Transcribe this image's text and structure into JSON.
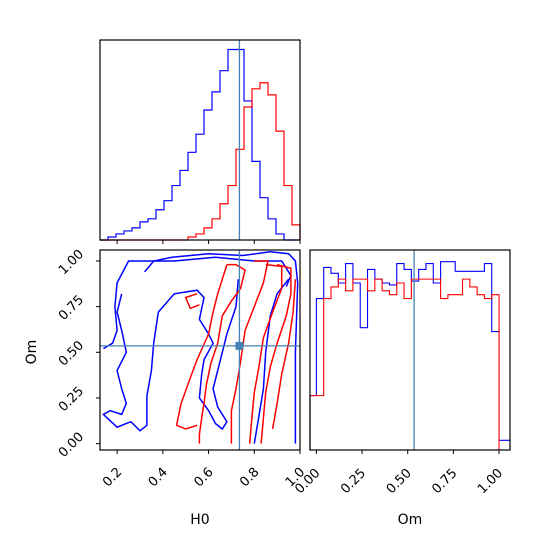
{
  "chart_data": {
    "type": "corner",
    "xlabel_h0": "H0",
    "xlabel_om": "Om",
    "ylabel_om": "Om",
    "h0_ticks": [
      {
        "value": 0.2,
        "label": "0.2"
      },
      {
        "value": 0.4,
        "label": "0.4"
      },
      {
        "value": 0.6,
        "label": "0.6"
      },
      {
        "value": 0.8,
        "label": "0.8"
      },
      {
        "value": 1.0,
        "label": "1.0"
      }
    ],
    "om_ticks": [
      {
        "value": 0.0,
        "label": "0.00"
      },
      {
        "value": 0.25,
        "label": "0.25"
      },
      {
        "value": 0.5,
        "label": "0.50"
      },
      {
        "value": 0.75,
        "label": "0.75"
      },
      {
        "value": 1.0,
        "label": "1.00"
      }
    ],
    "h0_range": [
      0.125,
      1.0
    ],
    "om_range": [
      -0.035,
      1.06
    ],
    "truth": {
      "H0": 0.735,
      "Om": 0.535
    },
    "colors": {
      "series_a": "#0000ff",
      "series_b": "#ff0000",
      "truth": "#4682b4"
    },
    "h0_hist": {
      "bins": [
        0.125,
        0.16,
        0.195,
        0.23,
        0.265,
        0.3,
        0.335,
        0.37,
        0.405,
        0.44,
        0.475,
        0.51,
        0.545,
        0.58,
        0.615,
        0.65,
        0.685,
        0.72,
        0.755,
        0.79,
        0.825,
        0.86,
        0.895,
        0.93,
        0.965,
        1.0
      ],
      "series_a": [
        0,
        1,
        2,
        3,
        4,
        6,
        7,
        10,
        13,
        18,
        23,
        29,
        35,
        43,
        49,
        56,
        63,
        63,
        46,
        26,
        14,
        7,
        2,
        0,
        0
      ],
      "series_b": [
        0,
        0,
        0,
        0,
        0,
        0,
        0,
        0,
        0,
        0,
        0,
        1,
        2,
        4,
        7,
        12,
        18,
        30,
        44,
        50,
        52,
        48,
        36,
        18,
        5
      ]
    },
    "om_hist": {
      "bins": [
        -0.035,
        0.0,
        0.04,
        0.08,
        0.12,
        0.16,
        0.2,
        0.24,
        0.28,
        0.32,
        0.36,
        0.4,
        0.44,
        0.48,
        0.52,
        0.56,
        0.6,
        0.64,
        0.68,
        0.72,
        0.76,
        0.8,
        0.84,
        0.88,
        0.92,
        0.96,
        1.0,
        1.06
      ],
      "series_a": [
        0.28,
        0.78,
        0.94,
        0.91,
        0.86,
        0.96,
        0.86,
        0.63,
        0.93,
        0.88,
        0.86,
        0.85,
        0.96,
        0.93,
        0.87,
        0.93,
        0.96,
        0.86,
        0.97,
        0.97,
        0.92,
        0.92,
        0.92,
        0.92,
        0.96,
        0.61,
        0.05
      ],
      "series_b": [
        0.28,
        0.28,
        0.78,
        0.84,
        0.88,
        0.82,
        0.88,
        0.88,
        0.82,
        0.88,
        0.82,
        0.8,
        0.86,
        0.78,
        0.88,
        0.88,
        0.88,
        0.88,
        0.78,
        0.8,
        0.8,
        0.88,
        0.84,
        0.8,
        0.78,
        0.8,
        0.0
      ]
    },
    "contours": {
      "series_a": [
        [
          [
            0.32,
            0.94
          ],
          [
            0.36,
            1.0
          ],
          [
            0.44,
            1.02
          ],
          [
            0.6,
            1.04
          ],
          [
            0.75,
            1.03
          ],
          [
            0.87,
            1.05
          ],
          [
            0.95,
            1.04
          ],
          [
            0.98,
            1.0
          ],
          [
            0.99,
            0.88
          ],
          [
            0.98,
            0.5
          ],
          [
            0.98,
            0.2
          ],
          [
            0.98,
            0.0
          ]
        ],
        [
          [
            0.14,
            0.52
          ],
          [
            0.18,
            0.55
          ],
          [
            0.2,
            0.62
          ],
          [
            0.19,
            0.75
          ],
          [
            0.2,
            0.88
          ],
          [
            0.25,
            1.0
          ],
          [
            0.45,
            1.0
          ],
          [
            0.63,
            1.02
          ],
          [
            0.8,
            1.0
          ],
          [
            0.92,
            1.0
          ],
          [
            0.96,
            0.92
          ],
          [
            0.94,
            0.86
          ]
        ],
        [
          [
            0.22,
            0.82
          ],
          [
            0.2,
            0.72
          ],
          [
            0.22,
            0.62
          ],
          [
            0.24,
            0.5
          ],
          [
            0.2,
            0.4
          ],
          [
            0.22,
            0.3
          ],
          [
            0.24,
            0.22
          ],
          [
            0.22,
            0.16
          ],
          [
            0.17,
            0.18
          ],
          [
            0.14,
            0.16
          ],
          [
            0.2,
            0.09
          ],
          [
            0.26,
            0.12
          ],
          [
            0.3,
            0.07
          ],
          [
            0.33,
            0.1
          ],
          [
            0.33,
            0.26
          ],
          [
            0.35,
            0.4
          ],
          [
            0.36,
            0.55
          ],
          [
            0.38,
            0.72
          ],
          [
            0.45,
            0.82
          ],
          [
            0.55,
            0.84
          ],
          [
            0.58,
            0.8
          ],
          [
            0.56,
            0.68
          ],
          [
            0.6,
            0.6
          ],
          [
            0.62,
            0.55
          ],
          [
            0.58,
            0.46
          ],
          [
            0.57,
            0.38
          ],
          [
            0.56,
            0.25
          ],
          [
            0.6,
            0.18
          ],
          [
            0.63,
            0.11
          ],
          [
            0.66,
            0.08
          ],
          [
            0.68,
            0.12
          ],
          [
            0.64,
            0.2
          ],
          [
            0.62,
            0.3
          ],
          [
            0.65,
            0.45
          ],
          [
            0.68,
            0.6
          ],
          [
            0.72,
            0.75
          ],
          [
            0.73,
            0.9
          ]
        ],
        [
          [
            0.8,
            0.0
          ],
          [
            0.82,
            0.15
          ],
          [
            0.84,
            0.3
          ],
          [
            0.85,
            0.5
          ],
          [
            0.87,
            0.7
          ],
          [
            0.9,
            0.82
          ],
          [
            0.95,
            0.9
          ]
        ]
      ],
      "series_b": [
        [
          [
            0.68,
            0.98
          ],
          [
            0.72,
            0.98
          ],
          [
            0.76,
            0.95
          ],
          [
            0.74,
            0.85
          ],
          [
            0.7,
            0.78
          ],
          [
            0.66,
            0.7
          ],
          [
            0.64,
            0.55
          ],
          [
            0.61,
            0.44
          ],
          [
            0.59,
            0.32
          ],
          [
            0.58,
            0.22
          ],
          [
            0.57,
            0.14
          ],
          [
            0.56,
            0.05
          ],
          [
            0.56,
            0.0
          ]
        ],
        [
          [
            0.8,
            1.0
          ],
          [
            0.86,
            1.0
          ],
          [
            0.84,
            0.88
          ],
          [
            0.8,
            0.75
          ],
          [
            0.76,
            0.62
          ],
          [
            0.74,
            0.45
          ],
          [
            0.72,
            0.3
          ],
          [
            0.7,
            0.18
          ],
          [
            0.7,
            0.0
          ]
        ],
        [
          [
            0.85,
            0.98
          ],
          [
            0.92,
            0.97
          ],
          [
            0.92,
            0.85
          ],
          [
            0.88,
            0.72
          ],
          [
            0.84,
            0.58
          ],
          [
            0.82,
            0.42
          ],
          [
            0.8,
            0.28
          ],
          [
            0.79,
            0.15
          ],
          [
            0.78,
            0.0
          ]
        ],
        [
          [
            0.9,
            0.98
          ],
          [
            0.96,
            0.96
          ],
          [
            0.96,
            0.82
          ],
          [
            0.94,
            0.7
          ],
          [
            0.9,
            0.55
          ],
          [
            0.87,
            0.42
          ],
          [
            0.85,
            0.28
          ],
          [
            0.84,
            0.14
          ],
          [
            0.83,
            0.0
          ]
        ],
        [
          [
            0.98,
            0.9
          ],
          [
            0.97,
            0.72
          ],
          [
            0.95,
            0.55
          ],
          [
            0.92,
            0.38
          ],
          [
            0.9,
            0.22
          ],
          [
            0.88,
            0.08
          ]
        ],
        [
          [
            0.55,
            0.1
          ],
          [
            0.5,
            0.08
          ],
          [
            0.46,
            0.1
          ],
          [
            0.48,
            0.22
          ],
          [
            0.52,
            0.36
          ],
          [
            0.55,
            0.46
          ],
          [
            0.6,
            0.6
          ],
          [
            0.62,
            0.72
          ],
          [
            0.64,
            0.82
          ],
          [
            0.66,
            0.9
          ],
          [
            0.68,
            0.98
          ]
        ],
        [
          [
            0.55,
            0.82
          ],
          [
            0.5,
            0.8
          ],
          [
            0.52,
            0.74
          ],
          [
            0.56,
            0.76
          ]
        ]
      ]
    }
  }
}
